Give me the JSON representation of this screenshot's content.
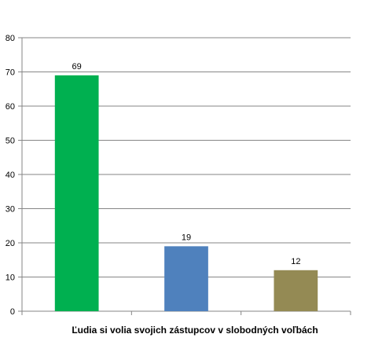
{
  "chart_data": {
    "type": "bar",
    "categories": [
      "",
      "",
      ""
    ],
    "values": [
      69,
      19,
      12
    ],
    "colors": [
      "#00b050",
      "#4f81bd",
      "#948a54"
    ],
    "data_labels": [
      "69",
      "19",
      "12"
    ],
    "title": "",
    "xlabel": "Ľudia si volia svojich zástupcov v slobodných voľbách",
    "ylabel": "",
    "ylim": [
      0,
      80
    ],
    "yticks": [
      0,
      10,
      20,
      30,
      40,
      50,
      60,
      70,
      80
    ],
    "ytick_labels": [
      "0",
      "10",
      "20",
      "30",
      "40",
      "50",
      "60",
      "70",
      "80"
    ],
    "grid": true,
    "legend": "none"
  }
}
